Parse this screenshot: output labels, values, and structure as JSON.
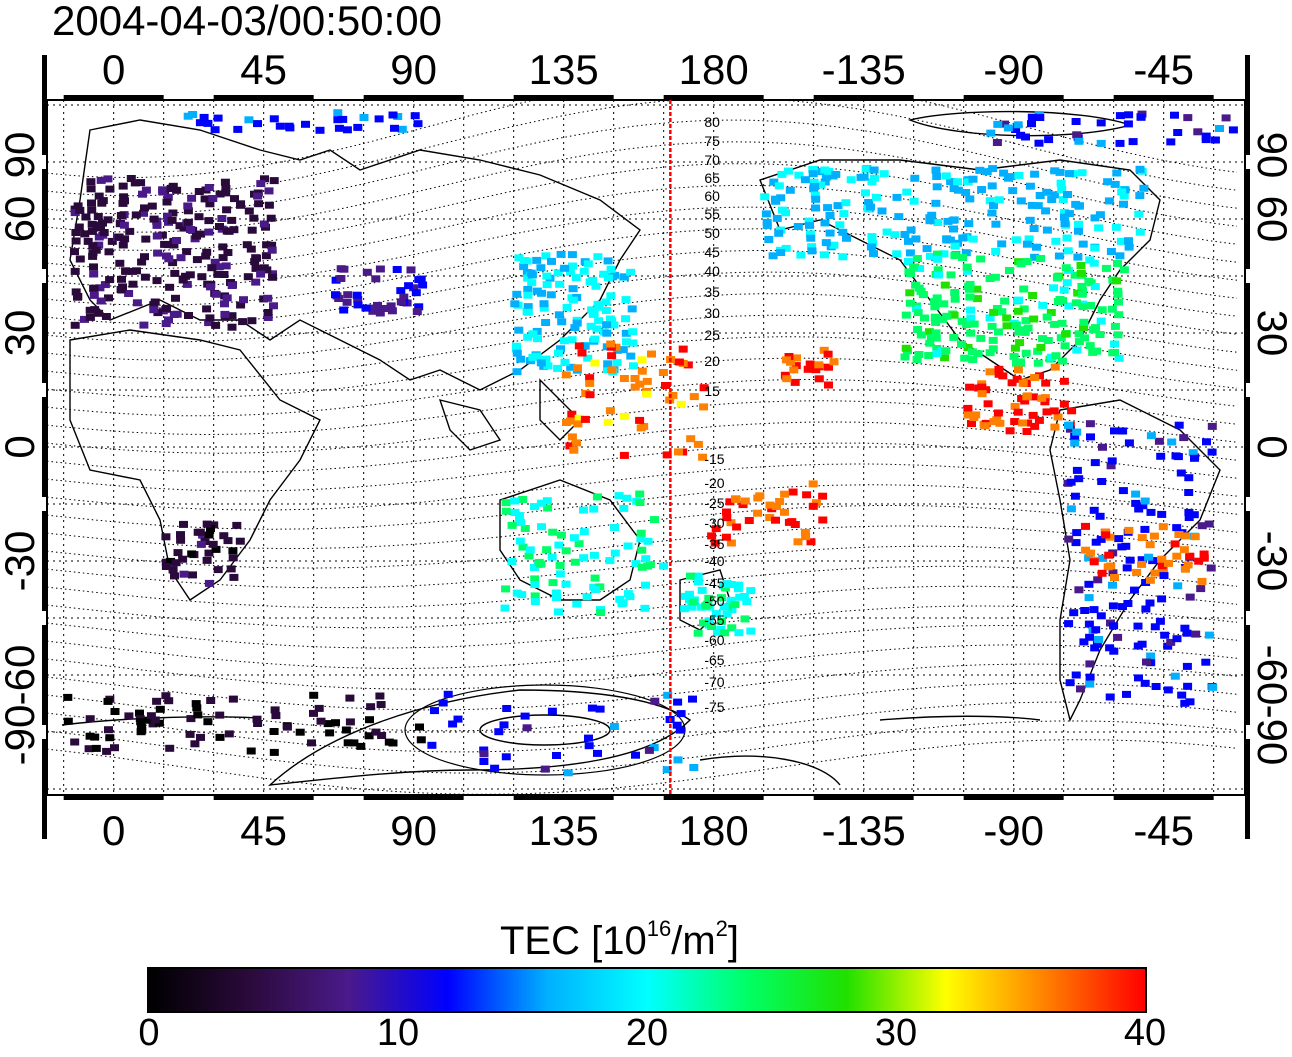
{
  "title": "2004-04-03/00:50:00",
  "map": {
    "top_lon_ticks": [
      "0",
      "45",
      "90",
      "135",
      "180",
      "-135",
      "-90",
      "-45"
    ],
    "bottom_lon_ticks": [
      "0",
      "45",
      "90",
      "135",
      "180",
      "-135",
      "-90",
      "-45"
    ],
    "left_lat_ticks": [
      "90",
      "60",
      "30",
      "0",
      "-30",
      "-60",
      "-90"
    ],
    "right_lat_ticks": [
      "90",
      "60",
      "30",
      "0",
      "-30",
      "-60",
      "-90"
    ],
    "terminator_longitude": 167,
    "contour_labels": [
      "80",
      "75",
      "70",
      "65",
      "60",
      "55",
      "50",
      "45",
      "40",
      "35",
      "30",
      "25",
      "20",
      "15",
      "-15",
      "-20",
      "-25",
      "-30",
      "-35",
      "-40",
      "-45",
      "-50",
      "-55",
      "-60",
      "-65",
      "-70",
      "-75"
    ],
    "colors": {
      "terminator": "#ff0000",
      "frame": "#000000"
    }
  },
  "colorbar": {
    "label_main": "TEC  [10",
    "label_sup1": "16",
    "label_mid": "/m",
    "label_sup2": "2",
    "label_end": "]",
    "ticks": [
      "0",
      "10",
      "20",
      "30",
      "40"
    ],
    "min": 0,
    "max": 40,
    "colormap": [
      "#000000",
      "#2a0a3a",
      "#4a1a8a",
      "#0000ff",
      "#00b0ff",
      "#00ffff",
      "#00ff66",
      "#20e000",
      "#ffff00",
      "#ff8000",
      "#ff0000"
    ]
  }
}
